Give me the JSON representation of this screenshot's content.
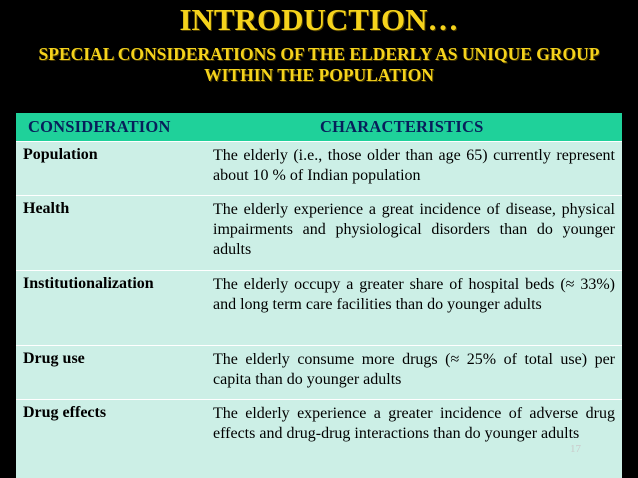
{
  "slide": {
    "title": "INTRODUCTION…",
    "subtitle": "SPECIAL CONSIDERATIONS OF THE ELDERLY AS UNIQUE GROUP WITHIN THE POPULATION",
    "page_number": "17"
  },
  "table": {
    "headers": [
      "CONSIDERATION",
      "CHARACTERISTICS"
    ],
    "rows": [
      {
        "consideration": "Population",
        "characteristics": "The elderly (i.e., those older than age 65) currently represent about 10 % of Indian population"
      },
      {
        "consideration": "Health",
        "characteristics": "The elderly experience a great incidence of disease, physical impairments and physiological disorders than do younger adults"
      },
      {
        "consideration": "Institutionalization",
        "characteristics": "The elderly occupy a greater share of hospital beds (≈ 33%) and long term care facilities than do younger adults"
      },
      {
        "consideration": "Drug use",
        "characteristics": "The elderly consume more drugs (≈ 25% of total use) per capita than do younger adults"
      },
      {
        "consideration": "Drug effects",
        "characteristics": "The elderly experience a greater incidence of adverse drug effects and drug-drug interactions than do younger adults"
      }
    ]
  },
  "colors": {
    "title": "#f5d31c",
    "header_bg": "#1fd19a",
    "header_text": "#071f5a",
    "body_bg": "#ccefe6",
    "page_bg": "#000000"
  }
}
